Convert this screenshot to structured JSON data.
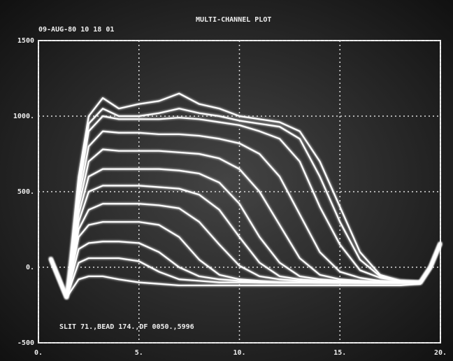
{
  "chart_data": {
    "type": "line",
    "title": "MULTI-CHANNEL PLOT",
    "subtitle": "09-AUG-80  10 18 01",
    "annotation": "SLIT 71.,BEAD 174.,DF 0050.,5996",
    "x": [
      0.6,
      1.4,
      2,
      2.5,
      3.2,
      4,
      5,
      6,
      7,
      8,
      9,
      10,
      11,
      12,
      13,
      14,
      15,
      16,
      17,
      18,
      19,
      19.5,
      20
    ],
    "series": [
      {
        "color": "#ffffff",
        "values": [
          60,
          -200,
          600,
          1000,
          1120,
          1050,
          1080,
          1100,
          1150,
          1080,
          1050,
          1000,
          980,
          960,
          900,
          700,
          400,
          100,
          -50,
          -90,
          -100,
          0,
          160
        ]
      },
      {
        "color": "#ffffff",
        "values": [
          60,
          -200,
          550,
          950,
          1050,
          1000,
          1000,
          1020,
          1050,
          1020,
          1000,
          970,
          950,
          930,
          850,
          600,
          300,
          50,
          -60,
          -90,
          -100,
          0,
          160
        ]
      },
      {
        "color": "#ffffff",
        "values": [
          60,
          -200,
          500,
          900,
          1000,
          980,
          980,
          980,
          990,
          980,
          960,
          940,
          900,
          850,
          700,
          400,
          150,
          -20,
          -70,
          -90,
          -100,
          0,
          160
        ]
      },
      {
        "color": "#ffffff",
        "values": [
          60,
          -200,
          450,
          800,
          900,
          890,
          890,
          880,
          880,
          870,
          850,
          820,
          750,
          600,
          350,
          100,
          -30,
          -70,
          -90,
          -100,
          -100,
          0,
          160
        ]
      },
      {
        "color": "#ffffff",
        "values": [
          60,
          -200,
          400,
          700,
          780,
          770,
          770,
          770,
          760,
          750,
          720,
          650,
          500,
          280,
          60,
          -50,
          -80,
          -90,
          -100,
          -100,
          -100,
          0,
          160
        ]
      },
      {
        "color": "#ffffff",
        "values": [
          60,
          -200,
          350,
          600,
          650,
          650,
          650,
          650,
          640,
          620,
          560,
          420,
          200,
          30,
          -60,
          -80,
          -90,
          -100,
          -100,
          -100,
          -100,
          0,
          160
        ]
      },
      {
        "color": "#ffffff",
        "values": [
          60,
          -200,
          300,
          500,
          540,
          540,
          540,
          530,
          520,
          480,
          380,
          200,
          30,
          -60,
          -80,
          -90,
          -100,
          -100,
          -100,
          -100,
          -100,
          0,
          160
        ]
      },
      {
        "color": "#ffffff",
        "values": [
          60,
          -200,
          250,
          380,
          420,
          420,
          420,
          410,
          390,
          300,
          150,
          10,
          -60,
          -80,
          -90,
          -100,
          -100,
          -100,
          -100,
          -100,
          -100,
          0,
          160
        ]
      },
      {
        "color": "#ffffff",
        "values": [
          60,
          -200,
          200,
          280,
          300,
          300,
          300,
          280,
          200,
          50,
          -50,
          -80,
          -90,
          -100,
          -100,
          -100,
          -100,
          -100,
          -100,
          -100,
          -100,
          0,
          160
        ]
      },
      {
        "color": "#ffffff",
        "values": [
          60,
          -200,
          120,
          160,
          170,
          170,
          160,
          100,
          0,
          -60,
          -80,
          -90,
          -100,
          -100,
          -100,
          -100,
          -100,
          -100,
          -100,
          -100,
          -100,
          0,
          160
        ]
      },
      {
        "color": "#ffffff",
        "values": [
          60,
          -200,
          30,
          60,
          60,
          60,
          40,
          -30,
          -80,
          -90,
          -100,
          -100,
          -100,
          -100,
          -100,
          -100,
          -100,
          -100,
          -100,
          -100,
          -100,
          0,
          160
        ]
      },
      {
        "color": "#ffffff",
        "values": [
          60,
          -200,
          -80,
          -60,
          -60,
          -80,
          -100,
          -110,
          -120,
          -120,
          -120,
          -120,
          -120,
          -120,
          -120,
          -120,
          -120,
          -120,
          -120,
          -120,
          -110,
          0,
          160
        ]
      }
    ],
    "xlim": [
      0,
      20
    ],
    "xticks": [
      {
        "value": 0,
        "label": "0."
      },
      {
        "value": 5,
        "label": "5."
      },
      {
        "value": 10,
        "label": "10."
      },
      {
        "value": 15,
        "label": "15."
      },
      {
        "value": 20,
        "label": "20."
      }
    ],
    "ylim": [
      -500,
      1500
    ],
    "yticks": [
      {
        "value": -500,
        "label": "-500"
      },
      {
        "value": 0,
        "label": "0."
      },
      {
        "value": 500,
        "label": "500."
      },
      {
        "value": 1000,
        "label": "1000."
      },
      {
        "value": 1500,
        "label": "1500"
      }
    ],
    "grid": true
  }
}
